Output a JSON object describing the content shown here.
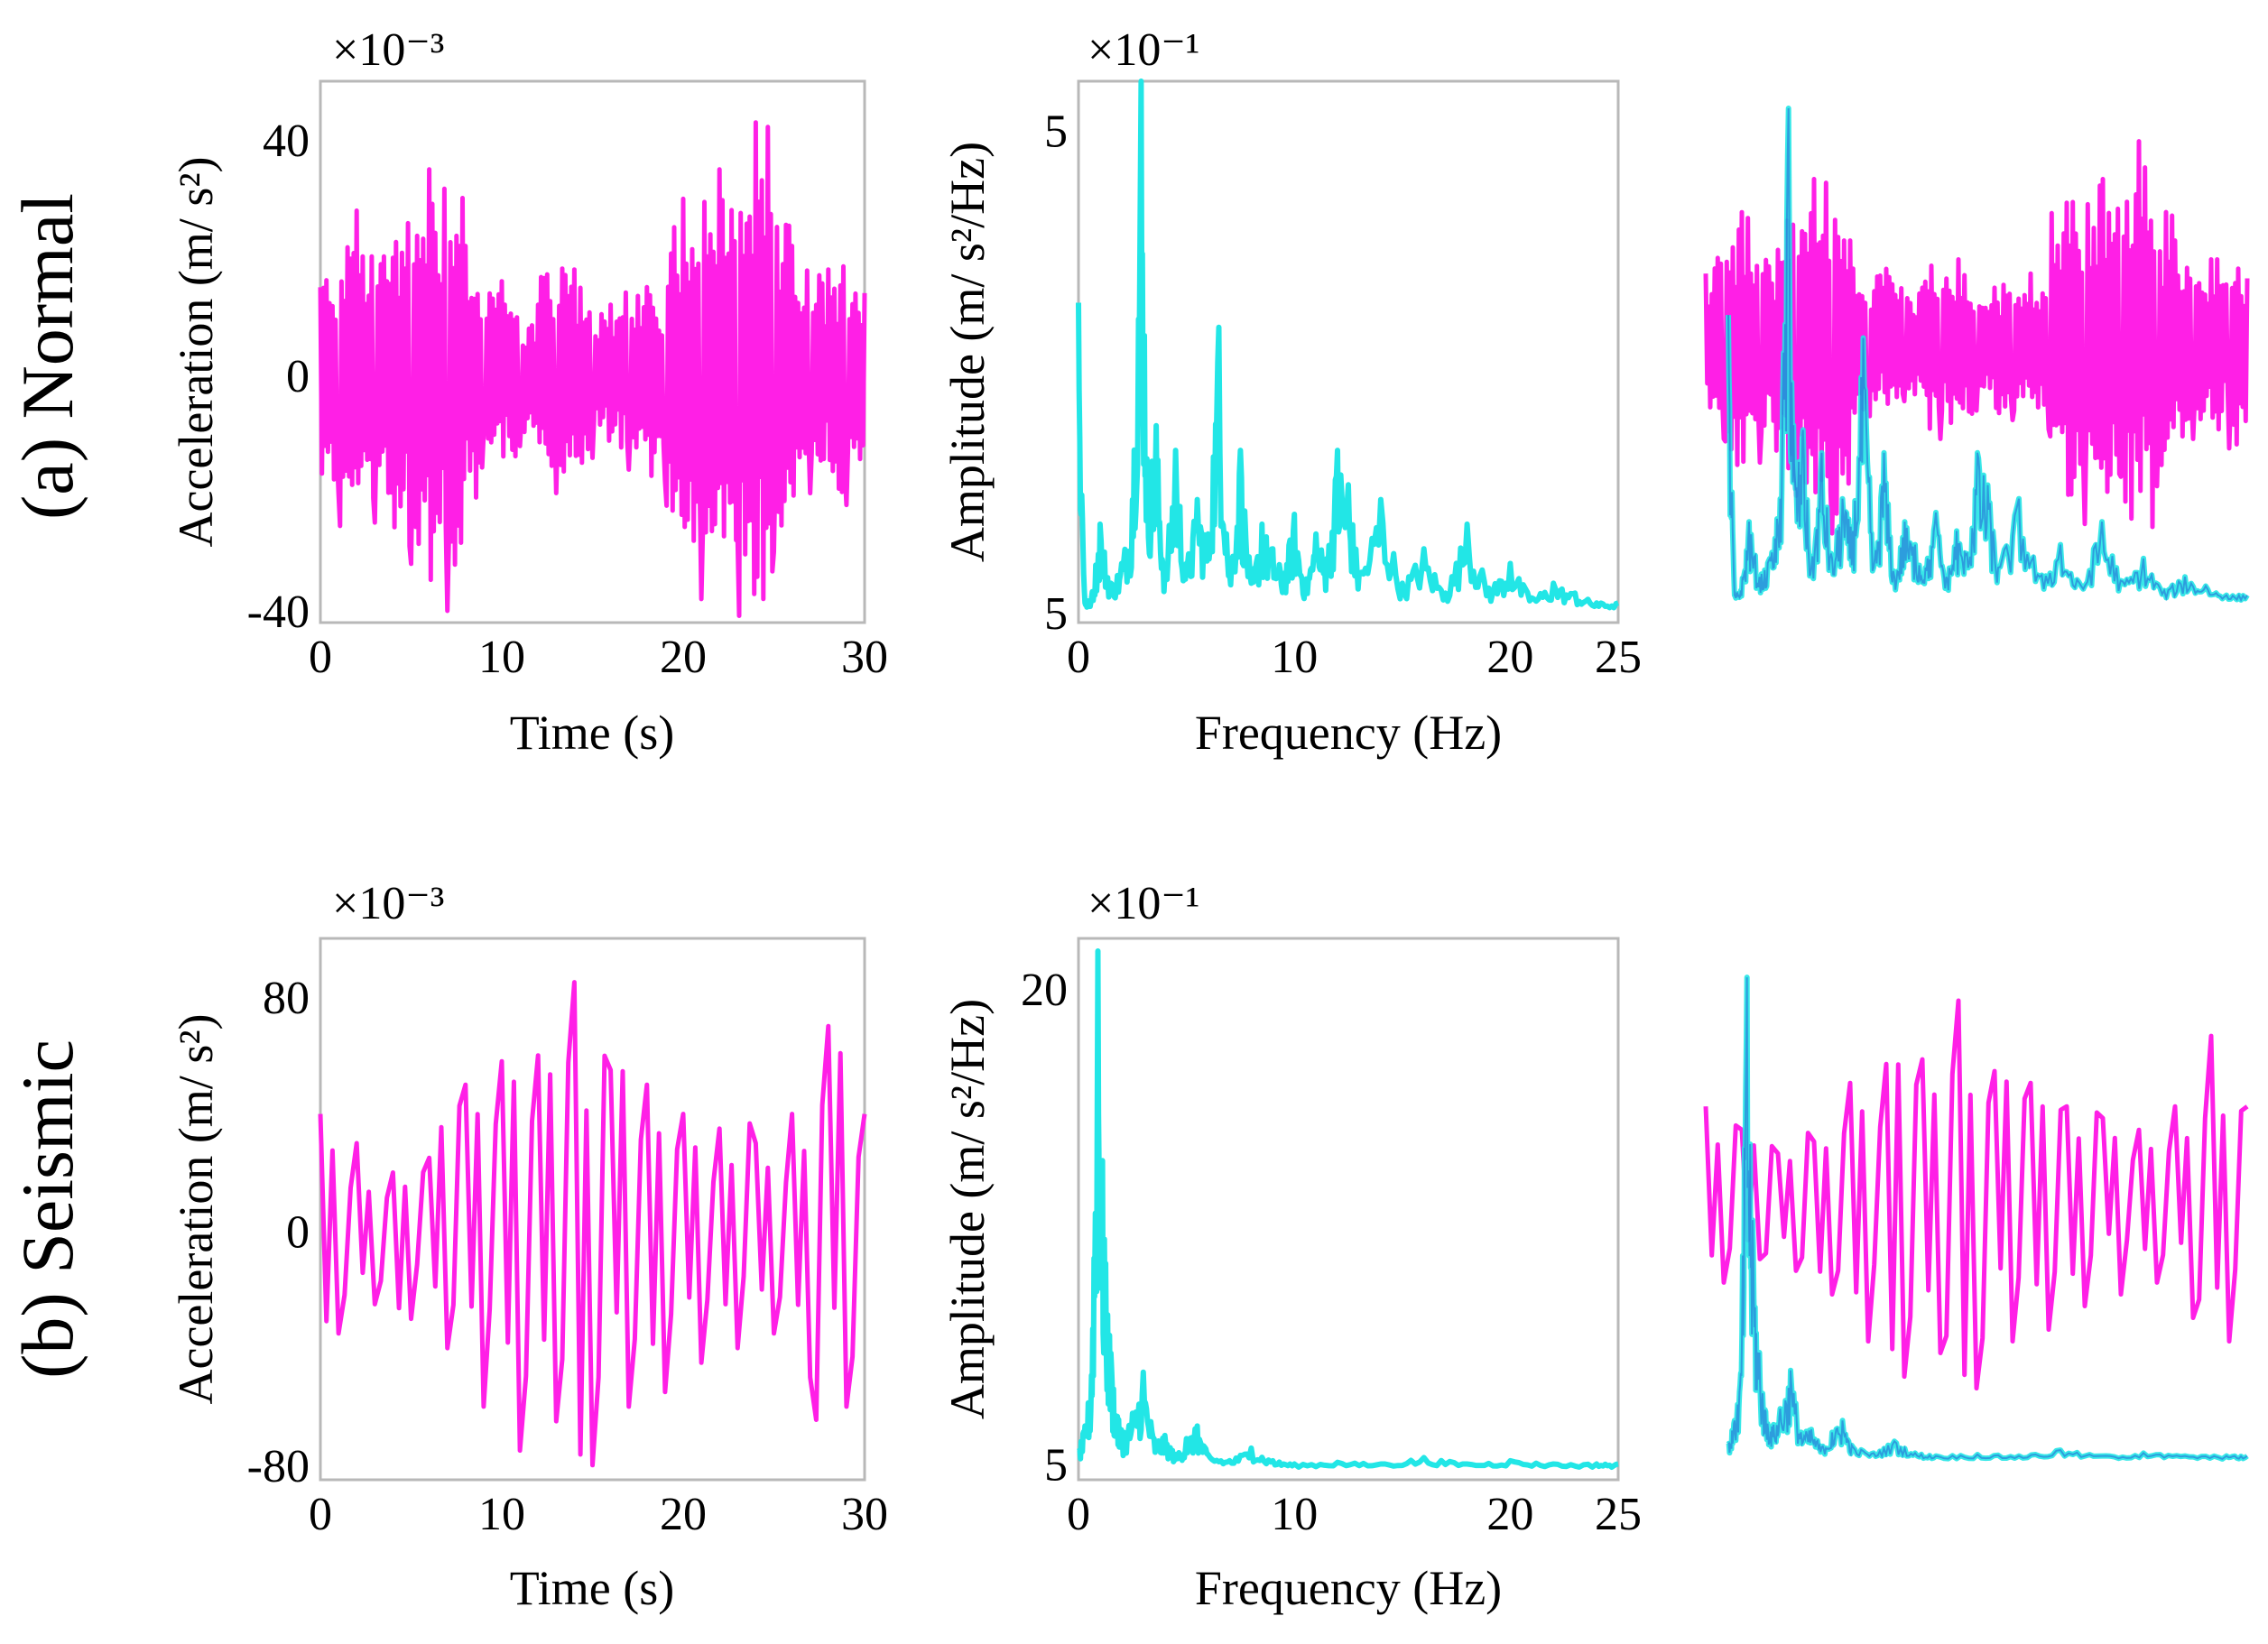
{
  "colors": {
    "time_signal": "#ff1fe6",
    "spectrum": "#22e6e6",
    "overlap": "#1a10c8",
    "frame": "#b8b8b8"
  },
  "rows": [
    {
      "label": "(a) Normal"
    },
    {
      "label": "(b) Seismic"
    }
  ],
  "chart_data": [
    {
      "id": "normal-time",
      "type": "line",
      "xlabel": "Time (s)",
      "ylabel": "Acceleration (m/ s²)",
      "multiplier": "×10⁻³",
      "xlim": [
        0,
        30
      ],
      "ylim": [
        -42,
        50
      ],
      "xticks": [
        "0",
        "10",
        "20",
        "30"
      ],
      "xtick_values": [
        0,
        10,
        20,
        30
      ],
      "yticks": [
        "-40",
        "0",
        "40"
      ],
      "ytick_values": [
        -40,
        0,
        40
      ],
      "series": [
        {
          "color": "#ff1fe6",
          "x": [
            0,
            1,
            2,
            3,
            4,
            5,
            6,
            7,
            8,
            9,
            10,
            11,
            12,
            13,
            14,
            15,
            16,
            17,
            18,
            19,
            20,
            21,
            22,
            23,
            24,
            25,
            26,
            27,
            28,
            29,
            30
          ],
          "y": [
            15,
            -20,
            28,
            -25,
            20,
            -32,
            35,
            -40,
            22,
            -10,
            16,
            -12,
            12,
            -20,
            18,
            -14,
            12,
            -16,
            15,
            -18,
            30,
            -38,
            35,
            -28,
            43,
            -30,
            22,
            -20,
            18,
            -22,
            14
          ]
        }
      ]
    },
    {
      "id": "normal-spectrum",
      "type": "line",
      "xlabel": "Frequency (Hz)",
      "ylabel": "Amplitude (m/ s²/Hz)",
      "multiplier": "×10⁻¹",
      "xlim": [
        0,
        25
      ],
      "ylim": [
        4.95,
        5.06
      ],
      "xticks": [
        "0",
        "10",
        "20",
        "25"
      ],
      "xtick_values": [
        0,
        10,
        20,
        25
      ],
      "yticks": [
        "5",
        "5"
      ],
      "ytick_values": [
        4.952,
        5.05
      ],
      "series": [
        {
          "color": "#22e6e6",
          "x": [
            0,
            0.3,
            0.6,
            1,
            1.5,
            2,
            2.5,
            2.9,
            3.2,
            3.6,
            4,
            4.5,
            5,
            5.5,
            6,
            6.5,
            7,
            7.5,
            8,
            8.5,
            9,
            9.5,
            10,
            10.5,
            11,
            11.5,
            12,
            12.5,
            13,
            14,
            15,
            16,
            17,
            18,
            19,
            20,
            21,
            22,
            23,
            24,
            25
          ],
          "y": [
            5.015,
            4.954,
            4.955,
            4.97,
            4.958,
            4.962,
            4.975,
            5.06,
            4.98,
            4.99,
            4.96,
            4.985,
            4.962,
            4.975,
            4.968,
            5.01,
            4.96,
            4.985,
            4.958,
            4.97,
            4.965,
            4.96,
            4.972,
            4.958,
            4.968,
            4.963,
            4.985,
            4.978,
            4.96,
            4.975,
            4.958,
            4.965,
            4.956,
            4.97,
            4.957,
            4.962,
            4.955,
            4.958,
            4.956,
            4.954,
            4.954
          ]
        }
      ]
    },
    {
      "id": "seismic-time",
      "type": "line",
      "xlabel": "Time (s)",
      "ylabel": "Acceleration (m/ s²)",
      "multiplier": "×10⁻³",
      "xlim": [
        0,
        30
      ],
      "ylim": [
        -85,
        100
      ],
      "xticks": [
        "0",
        "10",
        "20",
        "30"
      ],
      "xtick_values": [
        0,
        10,
        20,
        30
      ],
      "yticks": [
        "-80",
        "0",
        "80"
      ],
      "ytick_values": [
        -80,
        0,
        80
      ],
      "series": [
        {
          "color": "#ff1fe6",
          "x": [
            0,
            1,
            2,
            3,
            4,
            5,
            6,
            7,
            8,
            9,
            10,
            11,
            12,
            13,
            14,
            15,
            16,
            17,
            18,
            19,
            20,
            21,
            22,
            23,
            24,
            25,
            26,
            27,
            28,
            29,
            30
          ],
          "y": [
            40,
            -35,
            30,
            -25,
            20,
            -30,
            25,
            -40,
            50,
            -60,
            58,
            -75,
            60,
            -65,
            85,
            -80,
            55,
            -60,
            50,
            -55,
            40,
            -45,
            35,
            -40,
            30,
            -35,
            40,
            -50,
            70,
            -60,
            40
          ]
        }
      ]
    },
    {
      "id": "seismic-spectrum",
      "type": "line",
      "xlabel": "Frequency (Hz)",
      "ylabel": "Amplitude (m/ s²/Hz)",
      "multiplier": "×10⁻¹",
      "xlim": [
        0,
        25
      ],
      "ylim": [
        4.5,
        21.6
      ],
      "xticks": [
        "0",
        "10",
        "20",
        "25"
      ],
      "xtick_values": [
        0,
        10,
        20,
        25
      ],
      "yticks": [
        "5",
        "20"
      ],
      "ytick_values": [
        5,
        20
      ],
      "series": [
        {
          "color": "#22e6e6",
          "x": [
            0,
            0.3,
            0.6,
            0.9,
            1.2,
            1.5,
            1.8,
            2.1,
            2.5,
            3,
            3.5,
            4,
            4.5,
            5,
            5.5,
            6,
            7,
            8,
            9,
            10,
            12,
            14,
            16,
            18,
            20,
            22,
            24,
            25
          ],
          "y": [
            5.4,
            6.2,
            7.8,
            21.2,
            12.1,
            8.5,
            6.5,
            6.0,
            6.6,
            7.9,
            5.8,
            5.9,
            5.3,
            5.8,
            6.2,
            5.3,
            5.1,
            5.5,
            5.1,
            5.0,
            5.05,
            5.0,
            5.2,
            5.0,
            5.1,
            5.0,
            5.0,
            5.0
          ]
        }
      ]
    }
  ]
}
